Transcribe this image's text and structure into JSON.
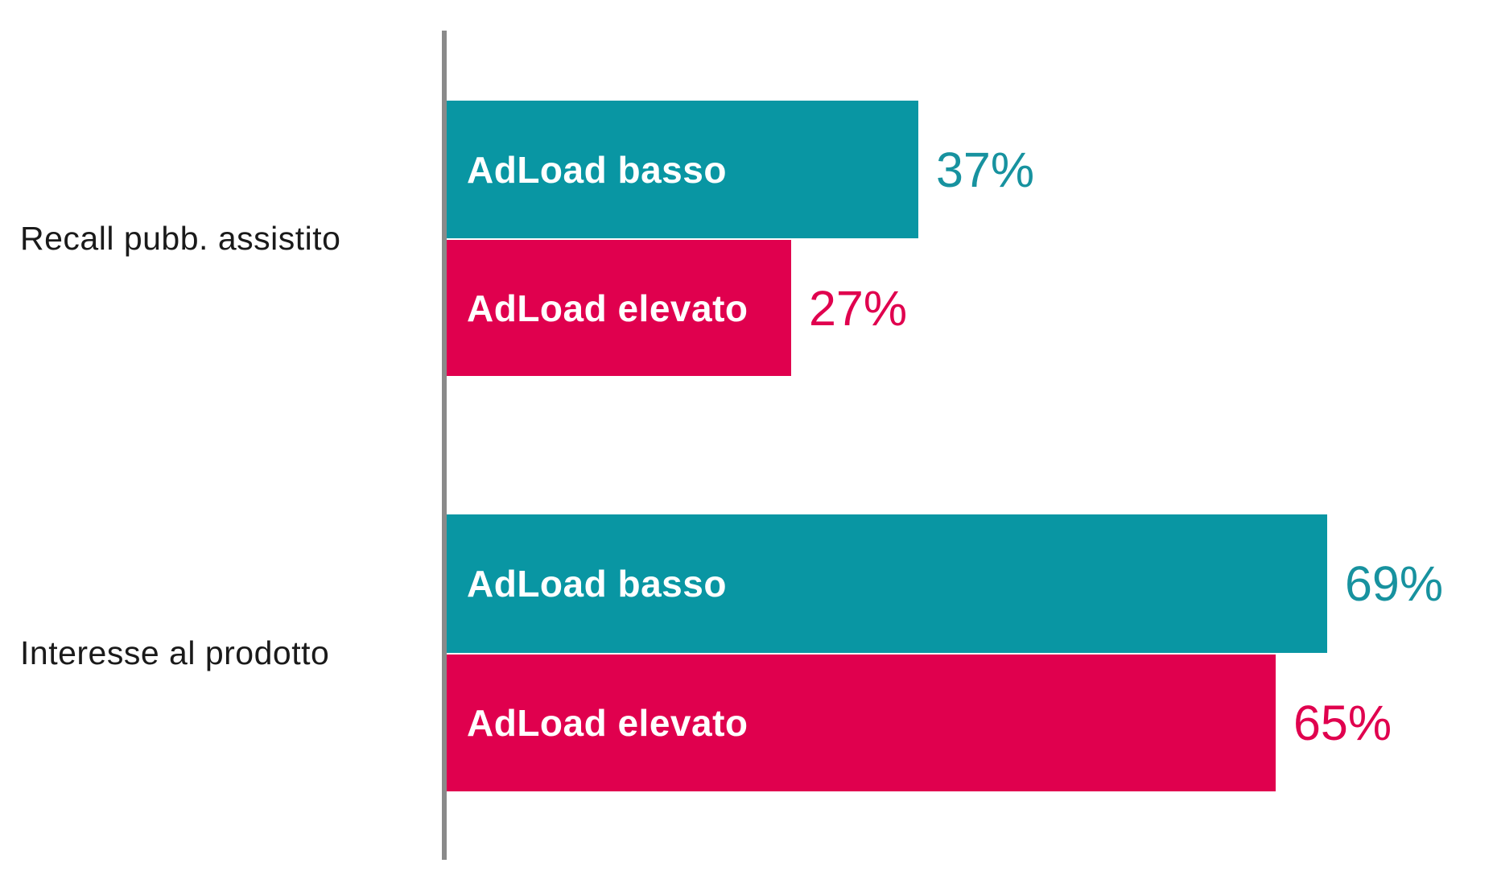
{
  "chart_data": {
    "type": "bar",
    "orientation": "horizontal",
    "title": "",
    "categories": [
      "Recall pubb. assistito",
      "Interesse al prodotto"
    ],
    "series": [
      {
        "name": "AdLoad basso",
        "values": [
          37,
          69
        ],
        "color": "#0996a3"
      },
      {
        "name": "AdLoad elevato",
        "values": [
          27,
          65
        ],
        "color": "#e0004e"
      }
    ],
    "value_suffix": "%",
    "xlim": [
      0,
      82
    ],
    "grid": false,
    "legend_position": "labels-inside-bars",
    "axis_line_color": "#8a8a8a"
  },
  "bars": [
    {
      "label": "AdLoad basso",
      "value": 37,
      "value_label": "37%",
      "series": "AdLoad basso",
      "category": "Recall pubb. assistito"
    },
    {
      "label": "AdLoad elevato",
      "value": 27,
      "value_label": "27%",
      "series": "AdLoad elevato",
      "category": "Recall pubb. assistito"
    },
    {
      "label": "AdLoad basso",
      "value": 69,
      "value_label": "69%",
      "series": "AdLoad basso",
      "category": "Interesse al prodotto"
    },
    {
      "label": "AdLoad elevato",
      "value": 65,
      "value_label": "65%",
      "series": "AdLoad elevato",
      "category": "Interesse al prodotto"
    }
  ],
  "colors": {
    "teal": "#0996a3",
    "red": "#e0004e",
    "axis": "#8a8a8a",
    "label_text": "#1a1a1a",
    "bar_label_text": "#ffffff"
  }
}
